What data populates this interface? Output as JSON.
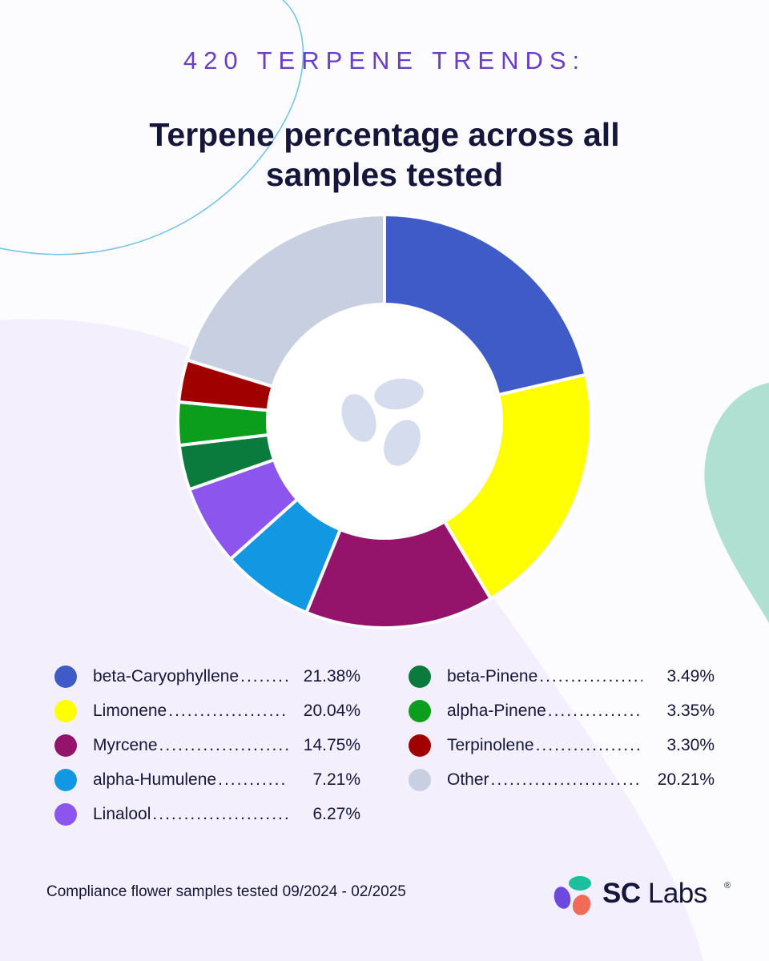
{
  "header": {
    "eyebrow": "420 TERPENE TRENDS:",
    "title": "Terpene percentage across all samples tested"
  },
  "chart_data": {
    "type": "pie",
    "variant": "donut",
    "title": "Terpene percentage across all samples tested",
    "series": [
      {
        "name": "beta-Caryophyllene",
        "value": 21.38,
        "label": "21.38%",
        "color": "#3f5bc7"
      },
      {
        "name": "Limonene",
        "value": 20.04,
        "label": "20.04%",
        "color": "#ffff00"
      },
      {
        "name": "Myrcene",
        "value": 14.75,
        "label": "14.75%",
        "color": "#94146b"
      },
      {
        "name": "alpha-Humulene",
        "value": 7.21,
        "label": "7.21%",
        "color": "#1297e2"
      },
      {
        "name": "Linalool",
        "value": 6.27,
        "label": "6.27%",
        "color": "#8b55ee"
      },
      {
        "name": "beta-Pinene",
        "value": 3.49,
        "label": "3.49%",
        "color": "#0b7a3d"
      },
      {
        "name": "alpha-Pinene",
        "value": 3.35,
        "label": "3.35%",
        "color": "#0b9d1c"
      },
      {
        "name": "Terpinolene",
        "value": 3.3,
        "label": "3.30%",
        "color": "#a00000"
      },
      {
        "name": "Other",
        "value": 20.21,
        "label": "20.21%",
        "color": "#c8cfe0"
      }
    ],
    "legend_position": "bottom"
  },
  "footer": {
    "note": "Compliance flower samples tested 09/2024 - 02/2025",
    "brand_bold": "SC",
    "brand_light": "Labs",
    "brand_mark": "®"
  },
  "colors": {
    "accent_purple": "#6a3fc8",
    "title_navy": "#15163a",
    "background_lavender": "#f3effc",
    "mint_shape": "#b0e0d2",
    "outline_blue": "#6fbfe6",
    "center_icon": "#d5dcee",
    "logo_teal": "#1ebf9c",
    "logo_purple": "#6d49e0",
    "logo_coral": "#f26a58"
  }
}
